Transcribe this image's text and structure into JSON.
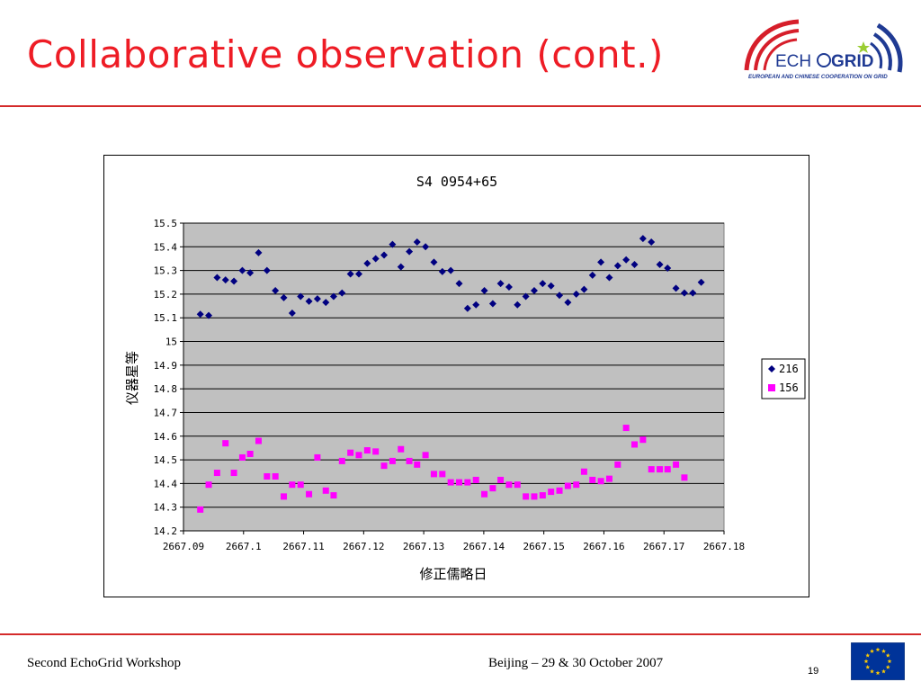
{
  "slide": {
    "title": "Collaborative observation (cont.)",
    "logo_text_left": "ECH",
    "logo_text_right": "GRID",
    "logo_subtitle": "EUROPEAN AND CHINESE COOPERATION ON GRID",
    "footer_left": "Second EchoGrid Workshop",
    "footer_center": "Beijing – 29 & 30 October 2007",
    "page_number": "19"
  },
  "colors": {
    "title_red": "#ee1c25",
    "rule_red": "#d42a2a",
    "plot_bg": "#c0c0c0",
    "series_216": "#000080",
    "series_156": "#ff00ff",
    "eu_blue": "#003399",
    "eu_gold": "#ffcc00"
  },
  "chart_data": {
    "type": "scatter",
    "title": "S4 0954+65",
    "xlabel": "修正儒略日",
    "ylabel": "仪器星等",
    "xlim": [
      2667.09,
      2667.18
    ],
    "ylim": [
      14.2,
      15.5
    ],
    "x_ticks": [
      "2667.09",
      "2667.1",
      "2667.11",
      "2667.12",
      "2667.13",
      "2667.14",
      "2667.15",
      "2667.16",
      "2667.17",
      "2667.18"
    ],
    "y_ticks": [
      "15.5",
      "15.4",
      "15.3",
      "15.2",
      "15.1",
      "15",
      "14.9",
      "14.8",
      "14.7",
      "14.6",
      "14.5",
      "14.4",
      "14.3",
      "14.2"
    ],
    "grid": "horizontal",
    "legend_position": "right",
    "series": [
      {
        "name": "216",
        "marker": "diamond",
        "points": [
          [
            2667.0928,
            15.115
          ],
          [
            2667.0942,
            15.11
          ],
          [
            2667.0956,
            15.27
          ],
          [
            2667.097,
            15.26
          ],
          [
            2667.0984,
            15.255
          ],
          [
            2667.0998,
            15.3
          ],
          [
            2667.1011,
            15.29
          ],
          [
            2667.1025,
            15.375
          ],
          [
            2667.1039,
            15.3
          ],
          [
            2667.1053,
            15.215
          ],
          [
            2667.1067,
            15.185
          ],
          [
            2667.1081,
            15.12
          ],
          [
            2667.1095,
            15.19
          ],
          [
            2667.1109,
            15.17
          ],
          [
            2667.1123,
            15.18
          ],
          [
            2667.1137,
            15.165
          ],
          [
            2667.115,
            15.19
          ],
          [
            2667.1164,
            15.205
          ],
          [
            2667.1178,
            15.285
          ],
          [
            2667.1192,
            15.285
          ],
          [
            2667.1206,
            15.33
          ],
          [
            2667.122,
            15.35
          ],
          [
            2667.1234,
            15.365
          ],
          [
            2667.1248,
            15.41
          ],
          [
            2667.1262,
            15.315
          ],
          [
            2667.1276,
            15.38
          ],
          [
            2667.1289,
            15.42
          ],
          [
            2667.1303,
            15.4
          ],
          [
            2667.1317,
            15.335
          ],
          [
            2667.1331,
            15.295
          ],
          [
            2667.1345,
            15.3
          ],
          [
            2667.1359,
            15.245
          ],
          [
            2667.1373,
            15.14
          ],
          [
            2667.1387,
            15.155
          ],
          [
            2667.1401,
            15.215
          ],
          [
            2667.1415,
            15.16
          ],
          [
            2667.1428,
            15.245
          ],
          [
            2667.1442,
            15.23
          ],
          [
            2667.1456,
            15.155
          ],
          [
            2667.147,
            15.19
          ],
          [
            2667.1484,
            15.215
          ],
          [
            2667.1498,
            15.245
          ],
          [
            2667.1512,
            15.235
          ],
          [
            2667.1526,
            15.195
          ],
          [
            2667.154,
            15.165
          ],
          [
            2667.1554,
            15.2
          ],
          [
            2667.1567,
            15.22
          ],
          [
            2667.1581,
            15.28
          ],
          [
            2667.1595,
            15.335
          ],
          [
            2667.1609,
            15.27
          ],
          [
            2667.1623,
            15.32
          ],
          [
            2667.1637,
            15.345
          ],
          [
            2667.1651,
            15.325
          ],
          [
            2667.1665,
            15.435
          ],
          [
            2667.1679,
            15.42
          ],
          [
            2667.1693,
            15.325
          ],
          [
            2667.1706,
            15.31
          ],
          [
            2667.172,
            15.225
          ],
          [
            2667.1734,
            15.205
          ],
          [
            2667.1748,
            15.205
          ],
          [
            2667.1762,
            15.25
          ]
        ]
      },
      {
        "name": "156",
        "marker": "square",
        "points": [
          [
            2667.0928,
            14.29
          ],
          [
            2667.0942,
            14.395
          ],
          [
            2667.0956,
            14.445
          ],
          [
            2667.097,
            14.57
          ],
          [
            2667.0984,
            14.445
          ],
          [
            2667.0998,
            14.51
          ],
          [
            2667.1011,
            14.525
          ],
          [
            2667.1025,
            14.58
          ],
          [
            2667.1039,
            14.43
          ],
          [
            2667.1053,
            14.43
          ],
          [
            2667.1067,
            14.345
          ],
          [
            2667.1081,
            14.395
          ],
          [
            2667.1095,
            14.395
          ],
          [
            2667.1109,
            14.355
          ],
          [
            2667.1123,
            14.51
          ],
          [
            2667.1137,
            14.37
          ],
          [
            2667.115,
            14.35
          ],
          [
            2667.1164,
            14.495
          ],
          [
            2667.1178,
            14.53
          ],
          [
            2667.1192,
            14.52
          ],
          [
            2667.1206,
            14.54
          ],
          [
            2667.122,
            14.535
          ],
          [
            2667.1234,
            14.475
          ],
          [
            2667.1248,
            14.495
          ],
          [
            2667.1262,
            14.545
          ],
          [
            2667.1276,
            14.495
          ],
          [
            2667.1289,
            14.48
          ],
          [
            2667.1303,
            14.52
          ],
          [
            2667.1317,
            14.44
          ],
          [
            2667.1331,
            14.44
          ],
          [
            2667.1345,
            14.405
          ],
          [
            2667.1359,
            14.405
          ],
          [
            2667.1373,
            14.405
          ],
          [
            2667.1387,
            14.415
          ],
          [
            2667.1401,
            14.355
          ],
          [
            2667.1415,
            14.38
          ],
          [
            2667.1428,
            14.415
          ],
          [
            2667.1442,
            14.395
          ],
          [
            2667.1456,
            14.395
          ],
          [
            2667.147,
            14.345
          ],
          [
            2667.1484,
            14.345
          ],
          [
            2667.1498,
            14.35
          ],
          [
            2667.1512,
            14.365
          ],
          [
            2667.1526,
            14.37
          ],
          [
            2667.154,
            14.39
          ],
          [
            2667.1554,
            14.395
          ],
          [
            2667.1567,
            14.45
          ],
          [
            2667.1581,
            14.415
          ],
          [
            2667.1595,
            14.41
          ],
          [
            2667.1609,
            14.42
          ],
          [
            2667.1623,
            14.48
          ],
          [
            2667.1637,
            14.635
          ],
          [
            2667.1651,
            14.565
          ],
          [
            2667.1665,
            14.585
          ],
          [
            2667.1679,
            14.46
          ],
          [
            2667.1693,
            14.46
          ],
          [
            2667.1706,
            14.46
          ],
          [
            2667.172,
            14.48
          ],
          [
            2667.1734,
            14.425
          ]
        ]
      }
    ]
  }
}
